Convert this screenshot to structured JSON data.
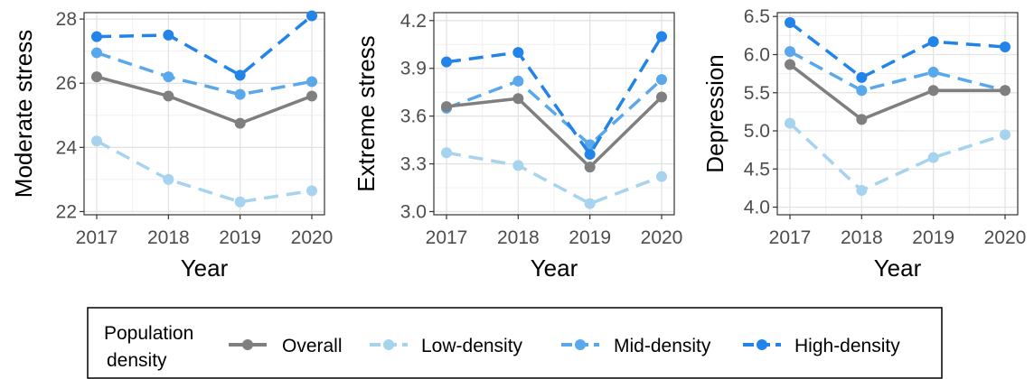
{
  "chart_data": [
    {
      "type": "line",
      "xlabel": "Year",
      "ylabel": "Moderate stress",
      "x": [
        2017,
        2018,
        2019,
        2020
      ],
      "x_tick_labels": [
        "2017",
        "2018",
        "2019",
        "2020"
      ],
      "ylim": [
        21.9,
        28.2
      ],
      "y_ticks": [
        22,
        24,
        26,
        28
      ],
      "y_tick_labels": [
        "22",
        "24",
        "26",
        "28"
      ],
      "grid": true,
      "series": [
        {
          "name": "Overall",
          "values": [
            26.2,
            25.6,
            24.75,
            25.6
          ]
        },
        {
          "name": "Low-density",
          "values": [
            24.2,
            23.0,
            22.3,
            22.65
          ]
        },
        {
          "name": "Mid-density",
          "values": [
            26.95,
            26.2,
            25.65,
            26.05
          ]
        },
        {
          "name": "High-density",
          "values": [
            27.45,
            27.5,
            26.25,
            28.1
          ]
        }
      ]
    },
    {
      "type": "line",
      "xlabel": "Year",
      "ylabel": "Extreme stress",
      "x": [
        2017,
        2018,
        2019,
        2020
      ],
      "x_tick_labels": [
        "2017",
        "2018",
        "2019",
        "2020"
      ],
      "ylim": [
        2.98,
        4.25
      ],
      "y_ticks": [
        3.0,
        3.3,
        3.6,
        3.9,
        4.2
      ],
      "y_tick_labels": [
        "3.0",
        "3.3",
        "3.6",
        "3.9",
        "4.2"
      ],
      "grid": true,
      "series": [
        {
          "name": "Overall",
          "values": [
            3.66,
            3.71,
            3.28,
            3.72
          ]
        },
        {
          "name": "Low-density",
          "values": [
            3.37,
            3.29,
            3.05,
            3.22
          ]
        },
        {
          "name": "Mid-density",
          "values": [
            3.65,
            3.82,
            3.42,
            3.83
          ]
        },
        {
          "name": "High-density",
          "values": [
            3.94,
            4.0,
            3.36,
            4.1
          ]
        }
      ]
    },
    {
      "type": "line",
      "xlabel": "Year",
      "ylabel": "Depression",
      "x": [
        2017,
        2018,
        2019,
        2020
      ],
      "x_tick_labels": [
        "2017",
        "2018",
        "2019",
        "2020"
      ],
      "ylim": [
        3.9,
        6.55
      ],
      "y_ticks": [
        4.0,
        4.5,
        5.0,
        5.5,
        6.0,
        6.5
      ],
      "y_tick_labels": [
        "4.0",
        "4.5",
        "5.0",
        "5.5",
        "6.0",
        "6.5"
      ],
      "grid": true,
      "series": [
        {
          "name": "Overall",
          "values": [
            5.87,
            5.15,
            5.53,
            5.53
          ]
        },
        {
          "name": "Low-density",
          "values": [
            5.1,
            4.22,
            4.65,
            4.95
          ]
        },
        {
          "name": "Mid-density",
          "values": [
            6.04,
            5.53,
            5.77,
            5.53
          ]
        },
        {
          "name": "High-density",
          "values": [
            6.42,
            5.7,
            6.17,
            6.1
          ]
        }
      ]
    }
  ],
  "legend": {
    "title_lines": [
      "Population",
      "density"
    ],
    "items": [
      {
        "label": "Overall",
        "color": "#7f7f7f",
        "dashed": false
      },
      {
        "label": "Low-density",
        "color": "#a6d3ed",
        "dashed": true
      },
      {
        "label": "Mid-density",
        "color": "#5aa8ec",
        "dashed": true
      },
      {
        "label": "High-density",
        "color": "#2283e8",
        "dashed": true
      }
    ]
  }
}
